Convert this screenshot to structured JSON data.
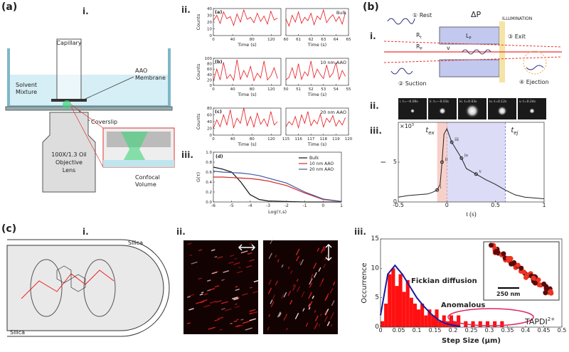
{
  "panel_a": {
    "label": "(a)",
    "schematic": {
      "number": "i.",
      "capillary": "Capillary",
      "solvent": [
        "Solvent",
        "Mixture"
      ],
      "membrane": [
        "AAO",
        "Membrane"
      ],
      "coverslip": "Coverslip",
      "objective": [
        "100X/1.3 Oil",
        "Objective",
        "Lens"
      ],
      "confocal": [
        "Confocal",
        "Volume"
      ]
    },
    "traces": {
      "number": "ii.",
      "ylabel": "Counts",
      "xlabel": "Time (s)",
      "color": "#e8141c",
      "left": {
        "xlim": [
          0,
          140
        ],
        "xticks": [
          0,
          40,
          80,
          120
        ],
        "x": [
          0,
          7,
          14,
          21,
          28,
          35,
          42,
          49,
          56,
          63,
          70,
          77,
          84,
          91,
          98,
          105,
          112,
          119,
          126,
          133
        ]
      },
      "rows": [
        {
          "tag": "(a)",
          "name": "Bulk",
          "ylim": [
            0,
            40
          ],
          "yticks": [
            0,
            10,
            20,
            30,
            40
          ],
          "left_values": [
            22,
            30,
            18,
            35,
            25,
            28,
            15,
            32,
            20,
            38,
            24,
            27,
            19,
            33,
            21,
            29,
            17,
            36,
            23,
            26
          ],
          "right": {
            "xlim": [
              60,
              65
            ],
            "xticks": [
              60,
              61,
              62,
              63,
              64,
              65
            ],
            "x": [
              60,
              60.25,
              60.5,
              60.75,
              61,
              61.25,
              61.5,
              61.75,
              62,
              62.25,
              62.5,
              62.75,
              63,
              63.25,
              63.5,
              63.75,
              64,
              64.25,
              64.5,
              64.75
            ],
            "values": [
              25,
              14,
              30,
              20,
              35,
              18,
              27,
              22,
              33,
              16,
              29,
              24,
              38,
              19,
              26,
              31,
              21,
              28,
              17,
              34
            ]
          }
        },
        {
          "tag": "(b)",
          "name": "10 nm AAO",
          "ylim": [
            0,
            100
          ],
          "yticks": [
            0,
            20,
            40,
            60,
            80,
            100
          ],
          "left_values": [
            15,
            60,
            20,
            85,
            25,
            40,
            18,
            95,
            22,
            55,
            30,
            70,
            17,
            45,
            28,
            90,
            20,
            35,
            65,
            25
          ],
          "right": {
            "xlim": [
              50,
              55
            ],
            "xticks": [
              50,
              51,
              52,
              53,
              54,
              55
            ],
            "x": [
              50,
              50.25,
              50.5,
              50.75,
              51,
              51.25,
              51.5,
              51.75,
              52,
              52.25,
              52.5,
              52.75,
              53,
              53.25,
              53.5,
              53.75,
              54,
              54.25,
              54.5,
              54.75
            ],
            "values": [
              20,
              30,
              65,
              25,
              80,
              22,
              50,
              35,
              90,
              28,
              60,
              40,
              25,
              75,
              30,
              45,
              85,
              22,
              55,
              33
            ]
          }
        },
        {
          "tag": "(c)",
          "name": "20 nm AAO",
          "ylim": [
            0,
            80
          ],
          "yticks": [
            0,
            20,
            40,
            60,
            80
          ],
          "left_values": [
            20,
            45,
            25,
            60,
            30,
            75,
            22,
            50,
            35,
            80,
            28,
            55,
            24,
            65,
            32,
            48,
            26,
            70,
            30,
            40
          ],
          "right": {
            "xlim": [
              115,
              120
            ],
            "xticks": [
              115,
              116,
              117,
              118,
              119,
              120
            ],
            "x": [
              115,
              115.25,
              115.5,
              115.75,
              116,
              116.25,
              116.5,
              116.75,
              117,
              117.25,
              117.5,
              117.75,
              118,
              118.25,
              118.5,
              118.75,
              119,
              119.25,
              119.5,
              119.75
            ],
            "values": [
              25,
              40,
              30,
              55,
              22,
              60,
              35,
              70,
              28,
              45,
              33,
              62,
              24,
              50,
              38,
              58,
              27,
              44,
              30,
              52
            ]
          }
        }
      ]
    },
    "correlation": {
      "number": "iii.",
      "tag": "(d)",
      "xlabel": "Log(τ,s)",
      "ylabel": "G(τ)",
      "xlim": [
        -6,
        1
      ],
      "xticks": [
        -6,
        -5,
        -4,
        -3,
        -2,
        -1,
        0,
        1
      ],
      "ylim": [
        0,
        1
      ],
      "yticks": [
        {
          "value": 0,
          "label": "0.0"
        },
        0.2,
        0.4,
        0.6,
        0.8,
        {
          "value": 1,
          "label": "1.0"
        }
      ],
      "x": [
        -6,
        -5.5,
        -5,
        -4.5,
        -4,
        -3.5,
        -3,
        -2,
        -1,
        0,
        1
      ],
      "series": [
        {
          "name": "Bulk",
          "color": "#111111",
          "values": [
            0.7,
            0.66,
            0.6,
            0.4,
            0.15,
            0.05,
            0.02,
            0.01,
            0,
            0,
            0
          ]
        },
        {
          "name": "10 nm AAO",
          "color": "#d62728",
          "values": [
            0.5,
            0.5,
            0.49,
            0.48,
            0.47,
            0.45,
            0.42,
            0.33,
            0.18,
            0.05,
            0.01
          ]
        },
        {
          "name": "20 nm AAO",
          "color": "#3b5ba5",
          "values": [
            0.62,
            0.6,
            0.59,
            0.58,
            0.56,
            0.53,
            0.48,
            0.38,
            0.2,
            0.06,
            0.01
          ]
        }
      ]
    }
  },
  "panel_b": {
    "label": "(b)",
    "schematic": {
      "number": "i.",
      "rest": "① Rest",
      "suction": "② Suction",
      "exit": "③ Exit",
      "ejection": "④ Ejection",
      "pressure": "ΔP",
      "illumination": "ILLUMINATION",
      "pore_length": {
        "main": "L",
        "sub": "P"
      },
      "tip_radius": {
        "main": "R",
        "sub": "t"
      },
      "pore_radius": {
        "main": "R",
        "sub": "P"
      },
      "velocity": "v"
    },
    "frames": {
      "number": "ii.",
      "labels": [
        "i. t=−0.06s",
        "ii. t=−0.03s",
        "iii. t=0.03s",
        "iv. t=0.12s",
        "v. t=0.24s"
      ]
    },
    "intensity": {
      "number": "iii.",
      "ylabel": "I",
      "xlabel": "t (s)",
      "multiplier": {
        "base": "×10",
        "exp": "3"
      },
      "xlim": [
        -0.5,
        1
      ],
      "xticks": [
        -0.5,
        0,
        0.5,
        1
      ],
      "ylim": [
        0,
        10
      ],
      "yticks": [
        0,
        5
      ],
      "color": "#222222",
      "x": [
        -0.5,
        -0.4,
        -0.3,
        -0.2,
        -0.15,
        -0.1,
        -0.07,
        -0.05,
        -0.03,
        0,
        0.02,
        0.05,
        0.1,
        0.15,
        0.2,
        0.3,
        0.4,
        0.5,
        0.6,
        0.7,
        0.8,
        0.9,
        1
      ],
      "values": [
        0.6,
        0.8,
        0.9,
        1,
        1.2,
        1.5,
        2.2,
        5,
        8.5,
        9.2,
        8.5,
        7.5,
        6.5,
        5.5,
        4.2,
        3.5,
        2.8,
        2.2,
        1.5,
        0.9,
        0.6,
        0.5,
        0.4
      ],
      "points": {
        "labels": [
          "i",
          "ii",
          "iii",
          "iv",
          "v"
        ],
        "x": [
          -0.1,
          -0.05,
          0.05,
          0.15,
          0.3
        ],
        "y": [
          1.5,
          5,
          7.5,
          5.5,
          3.5
        ]
      },
      "regions": [
        {
          "label": {
            "main": "t",
            "sub": "ex"
          },
          "range": [
            -0.1,
            0
          ],
          "color": "#f6c4bd"
        },
        {
          "label": {
            "main": "t",
            "sub": "ej"
          },
          "range": [
            0,
            0.6
          ],
          "color": "#d3d3f5"
        }
      ]
    }
  },
  "panel_c": {
    "label": "(c)",
    "channel": {
      "number": "i.",
      "wall_top": "Silica",
      "wall_bottom": "Silica"
    },
    "images": {
      "number": "ii."
    },
    "histogram": {
      "number": "iii.",
      "xlabel": "Step Size (μm)",
      "ylabel": "Occurrence",
      "xlim": [
        0,
        0.5
      ],
      "xticks": [
        0,
        0.05,
        0.1,
        0.15,
        0.2,
        0.25,
        0.3,
        0.35,
        0.4,
        0.45,
        0.5
      ],
      "ylim": [
        0,
        15
      ],
      "yticks": [
        0,
        5,
        10,
        15
      ],
      "color": "#ff1010",
      "bins": [
        0,
        0.01,
        0.02,
        0.03,
        0.04,
        0.05,
        0.06,
        0.07,
        0.08,
        0.09,
        0.1,
        0.11,
        0.12,
        0.13,
        0.14,
        0.15,
        0.16,
        0.17,
        0.18,
        0.19,
        0.2,
        0.21,
        0.22,
        0.23,
        0.24,
        0.25,
        0.26,
        0.27,
        0.28,
        0.29,
        0.3,
        0.31,
        0.32,
        0.33,
        0.34,
        0.35
      ],
      "counts": [
        1,
        4,
        9,
        10,
        7,
        9,
        6,
        8,
        5,
        4,
        3,
        4,
        2,
        3,
        2,
        3,
        1,
        2,
        1,
        2,
        1,
        2,
        0,
        1,
        0,
        1,
        0,
        1,
        0,
        1,
        0,
        1,
        0,
        1,
        0
      ],
      "fit": {
        "name": "Fickian diffusion",
        "color": "#1a1a9e",
        "x": [
          0,
          0.02,
          0.04,
          0.06,
          0.08,
          0.1,
          0.12,
          0.14,
          0.16,
          0.18,
          0.2,
          0.22
        ],
        "values": [
          2,
          9,
          10.5,
          9,
          7,
          5,
          3.5,
          2.2,
          1.2,
          0.6,
          0.3,
          0.1
        ]
      },
      "anomalous": "Anomalous",
      "molecule": {
        "main": "TAPDI",
        "sup": "2+"
      },
      "scale_bar": "250 nm"
    }
  }
}
